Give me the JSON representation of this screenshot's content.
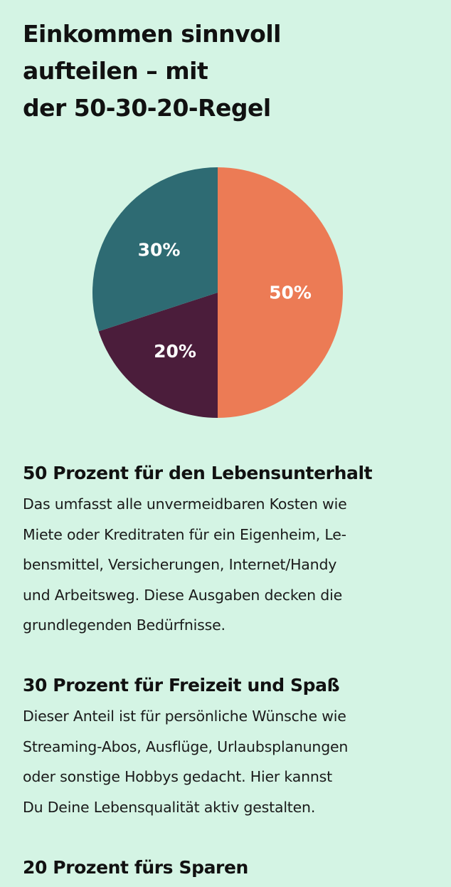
{
  "title_lines": [
    "Einkommen sinnvoll",
    "aufteilen – mit",
    "der 50-30-20-Regel"
  ],
  "colors": {
    "background": "#d4f4e4",
    "needs": "#ec7b55",
    "wants": "#2e6b73",
    "savings": "#4b1d3b",
    "label": "#ffffff"
  },
  "chart_data": {
    "type": "pie",
    "start_angle_deg": 0,
    "direction": "clockwise",
    "slices": [
      {
        "label": "50%",
        "value": 50,
        "color": "#ec7b55"
      },
      {
        "label": "20%",
        "value": 20,
        "color": "#4b1d3b"
      },
      {
        "label": "30%",
        "value": 30,
        "color": "#2e6b73"
      }
    ]
  },
  "sections": [
    {
      "heading": "50 Prozent für den Lebensunterhalt",
      "lines": [
        "Das umfasst alle unvermeidbaren Kosten wie",
        "Miete oder Kreditraten für ein Eigenheim, Le-",
        "bensmittel, Versicherungen, Internet/Handy",
        "und Arbeitsweg. Diese Ausgaben decken die",
        "grundlegenden Bedürfnisse."
      ]
    },
    {
      "heading": "30 Prozent für Freizeit und Spaß",
      "lines": [
        "Dieser Anteil ist für persönliche Wünsche wie",
        "Streaming-Abos, Ausflüge, Urlaubsplanungen",
        "oder sonstige Hobbys gedacht. Hier kannst",
        "Du Deine Lebensqualität aktiv gestalten."
      ]
    },
    {
      "heading": "20 Prozent fürs Sparen"
    }
  ]
}
